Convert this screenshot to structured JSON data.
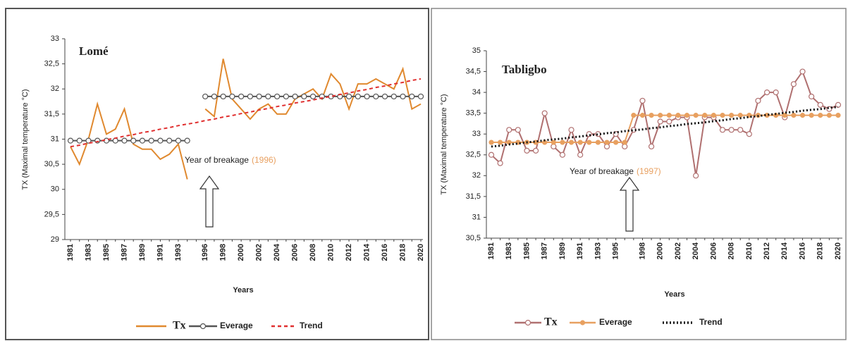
{
  "chart_data": [
    {
      "type": "line",
      "title": "Lomé",
      "y_label": "TX (Maximal temperature °C)",
      "x_label": "Years",
      "annotation": "Year of breakage",
      "annotation_year": "(1996)",
      "categories": [
        "1981",
        null,
        "1983",
        null,
        "1985",
        null,
        "1987",
        null,
        "1989",
        null,
        "1991",
        null,
        "1993",
        null,
        null,
        "1996",
        null,
        "1998",
        null,
        "2000",
        null,
        "2002",
        null,
        "2004",
        null,
        "2006",
        null,
        "2008",
        null,
        "2010",
        null,
        "2012",
        null,
        "2014",
        null,
        "2016",
        null,
        "2018",
        null,
        "2020"
      ],
      "ylim": [
        29,
        33
      ],
      "yticks": [
        29,
        {
          "value": 29.5,
          "label": "29,5"
        },
        30,
        {
          "value": 30.5,
          "label": "30,5"
        },
        31,
        {
          "value": 31.5,
          "label": "31,5"
        },
        32,
        {
          "value": 32.5,
          "label": "32,5"
        },
        33
      ],
      "series": [
        {
          "name": "Tx",
          "color": "#e0892f",
          "line_style": "solid",
          "values": [
            30.85,
            30.5,
            31.0,
            31.7,
            31.1,
            31.2,
            31.6,
            30.9,
            30.8,
            30.8,
            30.6,
            30.7,
            30.9,
            30.2,
            null,
            31.6,
            31.45,
            32.6,
            31.8,
            31.6,
            31.4,
            31.6,
            31.7,
            31.5,
            31.5,
            31.8,
            31.9,
            32.0,
            31.8,
            32.3,
            32.1,
            31.6,
            32.1,
            32.1,
            32.2,
            32.1,
            32.0,
            32.4,
            31.6,
            31.7
          ]
        },
        {
          "name": "Everage",
          "color": "#555555",
          "line_style": "solid",
          "marker": "open-circle",
          "values": [
            30.97,
            30.97,
            30.97,
            30.97,
            30.97,
            30.97,
            30.97,
            30.97,
            30.97,
            30.97,
            30.97,
            30.97,
            30.97,
            30.97,
            null,
            31.85,
            31.85,
            31.85,
            31.85,
            31.85,
            31.85,
            31.85,
            31.85,
            31.85,
            31.85,
            31.85,
            31.85,
            31.85,
            31.85,
            31.85,
            31.85,
            31.85,
            31.85,
            31.85,
            31.85,
            31.85,
            31.85,
            31.85,
            31.85,
            31.85
          ]
        },
        {
          "name": "Trend",
          "color": "#e03030",
          "line_style": "dashed",
          "values": [
            30.85,
            30.88,
            30.92,
            30.95,
            30.99,
            31.02,
            31.06,
            31.09,
            31.13,
            31.16,
            31.2,
            31.23,
            31.27,
            31.3,
            31.33,
            31.37,
            31.4,
            31.44,
            31.47,
            31.51,
            31.54,
            31.58,
            31.61,
            31.65,
            31.68,
            31.72,
            31.75,
            31.78,
            31.82,
            31.85,
            31.89,
            31.92,
            31.96,
            31.99,
            32.03,
            32.06,
            32.1,
            32.13,
            32.17,
            32.2
          ]
        }
      ]
    },
    {
      "type": "line",
      "title": "Tabligbo",
      "y_label": "TX (Maximal temperature °C)",
      "x_label": "Years",
      "annotation": "Year of breakage",
      "annotation_year": "(1997)",
      "categories": [
        "1981",
        null,
        "1983",
        null,
        "1985",
        null,
        "1987",
        null,
        "1989",
        null,
        "1991",
        null,
        "1993",
        null,
        "1995",
        null,
        null,
        "1998",
        null,
        "2000",
        null,
        "2002",
        null,
        "2004",
        null,
        "2006",
        null,
        "2008",
        null,
        "2010",
        null,
        "2012",
        null,
        "2014",
        null,
        "2016",
        null,
        "2018",
        null,
        "2020"
      ],
      "ylim": [
        30.5,
        35
      ],
      "yticks": [
        {
          "value": 30.5,
          "label": "30,5"
        },
        31,
        {
          "value": 31.5,
          "label": "31,5"
        },
        32,
        {
          "value": 32.5,
          "label": "32,5"
        },
        33,
        {
          "value": 33.5,
          "label": "33,5"
        },
        34,
        {
          "value": 34.5,
          "label": "34,5"
        },
        35
      ],
      "series": [
        {
          "name": "Tx",
          "color": "#b07070",
          "line_style": "solid",
          "marker": "open-circle",
          "values": [
            32.5,
            32.3,
            33.1,
            33.1,
            32.6,
            32.6,
            33.5,
            32.7,
            32.5,
            33.1,
            32.5,
            33.0,
            33.0,
            32.7,
            33.0,
            32.7,
            33.1,
            33.8,
            32.7,
            33.3,
            33.3,
            33.4,
            33.4,
            32.0,
            33.4,
            33.4,
            33.1,
            33.1,
            33.1,
            33.0,
            33.8,
            34.0,
            34.0,
            33.4,
            34.2,
            34.5,
            33.9,
            33.7,
            33.6,
            33.7
          ]
        },
        {
          "name": "Everage",
          "color": "#e8a060",
          "line_style": "solid",
          "marker": "dot",
          "values": [
            32.8,
            32.8,
            32.8,
            32.8,
            32.8,
            32.8,
            32.8,
            32.8,
            32.8,
            32.8,
            32.8,
            32.8,
            32.8,
            32.8,
            32.8,
            32.8,
            33.45,
            33.45,
            33.45,
            33.45,
            33.45,
            33.45,
            33.45,
            33.45,
            33.45,
            33.45,
            33.45,
            33.45,
            33.45,
            33.45,
            33.45,
            33.45,
            33.45,
            33.45,
            33.45,
            33.45,
            33.45,
            33.45,
            33.45,
            33.45
          ]
        },
        {
          "name": "Trend",
          "color": "#111111",
          "line_style": "dotted",
          "values": [
            32.7,
            32.72,
            32.75,
            32.77,
            32.8,
            32.82,
            32.85,
            32.87,
            32.89,
            32.92,
            32.94,
            32.97,
            32.99,
            33.02,
            33.04,
            33.07,
            33.09,
            33.11,
            33.14,
            33.16,
            33.19,
            33.21,
            33.24,
            33.26,
            33.28,
            33.31,
            33.33,
            33.36,
            33.38,
            33.41,
            33.43,
            33.46,
            33.48,
            33.51,
            33.53,
            33.56,
            33.58,
            33.6,
            33.63,
            33.65
          ]
        }
      ]
    }
  ]
}
